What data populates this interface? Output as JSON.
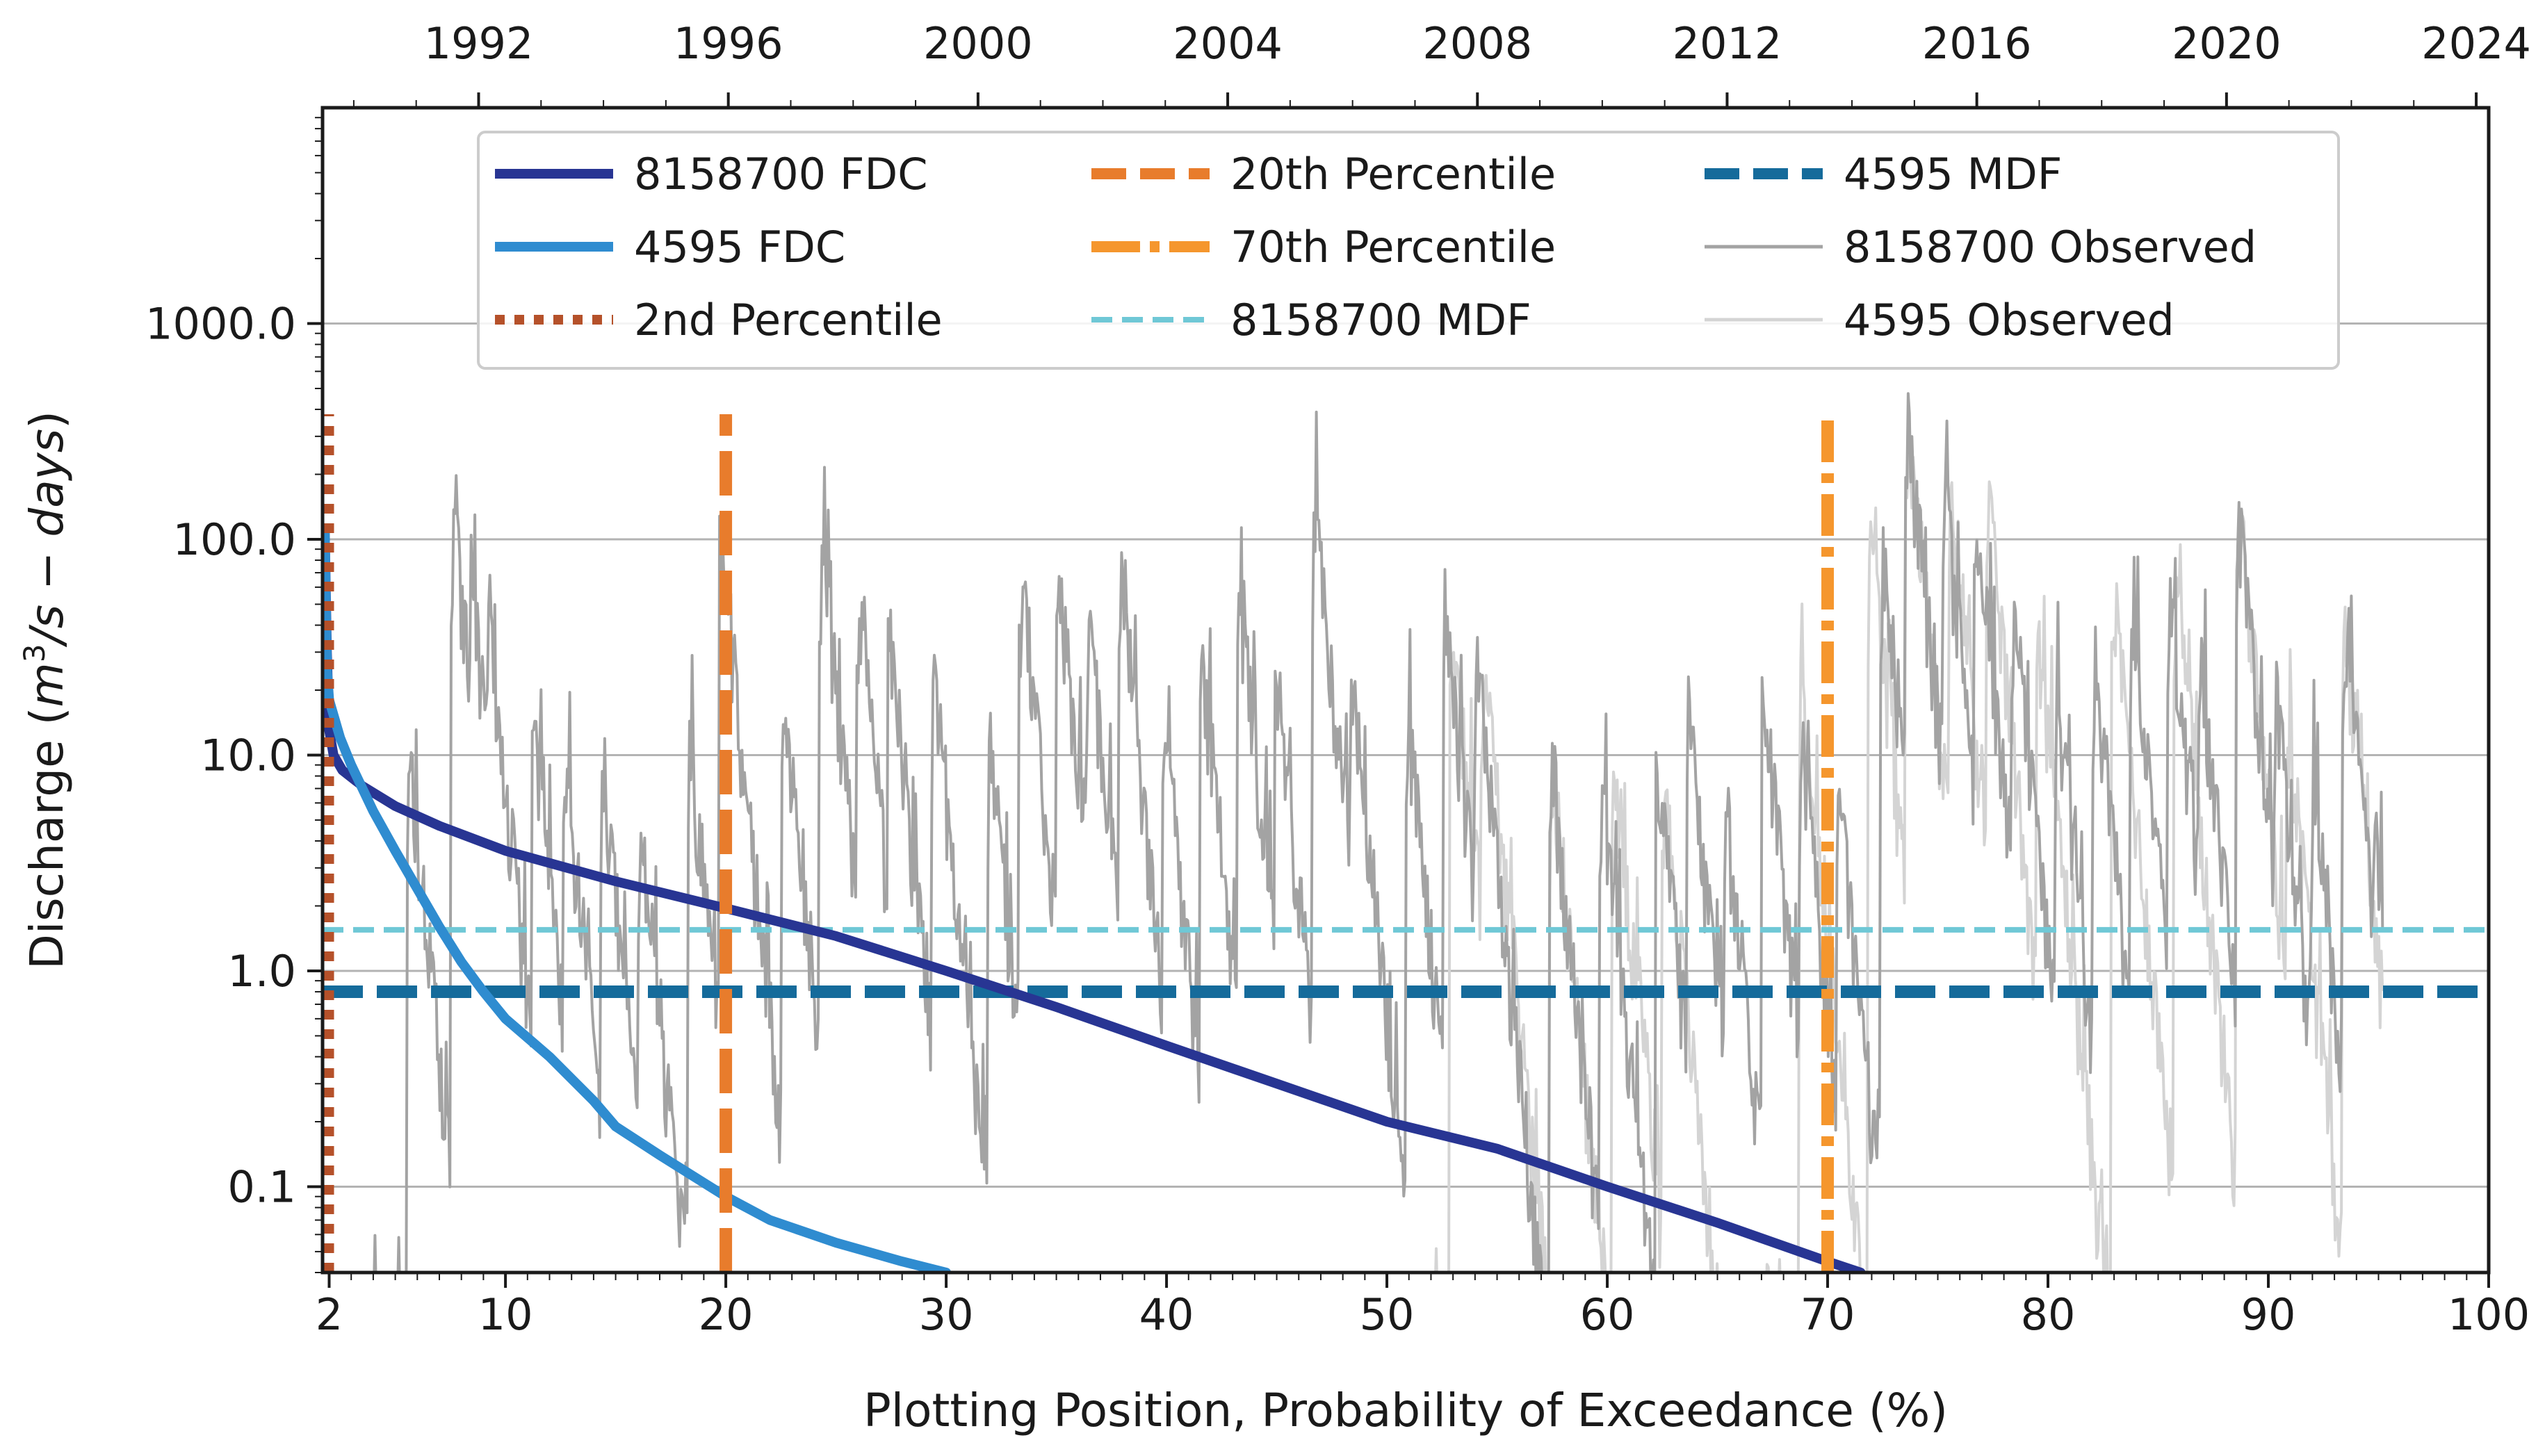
{
  "chart_data": {
    "type": "line",
    "title": "",
    "xlabel": "Plotting Position, Probability of Exceedance (%)",
    "ylabel_main": "Discharge (",
    "ylabel_m": "m",
    "ylabel_sup": "3",
    "ylabel_rest": "/s − days",
    "ylabel_close": ")",
    "xlim": [
      1.7,
      100
    ],
    "ylim": [
      0.04,
      10000
    ],
    "yscale": "log",
    "x_ticks": [
      2,
      10,
      20,
      30,
      40,
      50,
      60,
      70,
      80,
      90,
      100
    ],
    "x_tick_labels": [
      "2",
      "10",
      "20",
      "30",
      "40",
      "50",
      "60",
      "70",
      "80",
      "90",
      "100"
    ],
    "y_ticks": [
      0.1,
      1,
      10,
      100,
      1000
    ],
    "y_tick_labels": [
      "0.1",
      "1.0",
      "10.0",
      "100.0",
      "1000.0"
    ],
    "top_axis": {
      "label_years": [
        1992,
        1996,
        2000,
        2004,
        2008,
        2012,
        2016,
        2020,
        2024
      ],
      "tick_labels": [
        "1992",
        "1996",
        "2000",
        "2004",
        "2008",
        "2012",
        "2016",
        "2020",
        "2024"
      ],
      "year_range": [
        1989.5,
        2024.2
      ]
    },
    "grid": "horizontal",
    "legend_position": "upper-center",
    "colors": {
      "fdc_8158700": "#283593",
      "fdc_4595": "#2f8cd0",
      "p2": "#b5512a",
      "p20": "#e87c2c",
      "p70": "#f5962d",
      "mdf_8158700": "#6fc8d6",
      "mdf_4595": "#156b9b",
      "obs_8158700": "#a3a3a3",
      "obs_4595": "#d4d4d4"
    },
    "legend": [
      {
        "label": "8158700 FDC",
        "style": "solid-thick",
        "color": "#283593"
      },
      {
        "label": "4595 FDC",
        "style": "solid-thick",
        "color": "#2f8cd0"
      },
      {
        "label": "2nd Percentile",
        "style": "dotted",
        "color": "#b5512a"
      },
      {
        "label": "20th Percentile",
        "style": "dashed",
        "color": "#e87c2c"
      },
      {
        "label": "70th Percentile",
        "style": "dashdot",
        "color": "#f5962d"
      },
      {
        "label": "8158700 MDF",
        "style": "dashed-thin",
        "color": "#6fc8d6"
      },
      {
        "label": "4595 MDF",
        "style": "dashed-thick",
        "color": "#156b9b"
      },
      {
        "label": "8158700 Observed",
        "style": "solid-thin",
        "color": "#a3a3a3"
      },
      {
        "label": "4595 Observed",
        "style": "solid-thin",
        "color": "#d4d4d4"
      }
    ],
    "series": [
      {
        "name": "8158700 FDC",
        "x": [
          1.8,
          1.9,
          2.0,
          2.2,
          2.6,
          3.5,
          5.0,
          7.0,
          10.0,
          15.0,
          20.0,
          25.0,
          30.0,
          35.0,
          40.0,
          45.0,
          50.0,
          55.0,
          60.0,
          65.0,
          70.0,
          71.5
        ],
        "y": [
          110,
          30,
          13,
          10,
          8.5,
          7.2,
          5.8,
          4.7,
          3.6,
          2.6,
          1.95,
          1.45,
          1.0,
          0.68,
          0.45,
          0.3,
          0.2,
          0.15,
          0.1,
          0.068,
          0.045,
          0.04
        ]
      },
      {
        "name": "4595 FDC",
        "x": [
          1.8,
          1.9,
          2.0,
          2.5,
          3.0,
          4.0,
          5.0,
          6.0,
          7.0,
          8.0,
          9.0,
          10.0,
          12.0,
          14.0,
          15.0,
          17.0,
          20.0,
          22.0,
          25.0,
          28.0,
          30.0
        ],
        "y": [
          110,
          25,
          18,
          12,
          9,
          5.5,
          3.6,
          2.4,
          1.6,
          1.1,
          0.8,
          0.6,
          0.4,
          0.25,
          0.19,
          0.14,
          0.09,
          0.07,
          0.055,
          0.045,
          0.04
        ]
      }
    ],
    "reference_lines": {
      "vertical": [
        {
          "name": "2nd Percentile",
          "x": 2.0,
          "ymax": 380
        },
        {
          "name": "20th Percentile",
          "x": 20.0,
          "ymax": 380
        },
        {
          "name": "70th Percentile",
          "x": 70.0,
          "ymax": 380
        }
      ],
      "horizontal": [
        {
          "name": "8158700 MDF",
          "y": 1.55
        },
        {
          "name": "4595 MDF",
          "y": 0.8
        }
      ]
    },
    "observed_8158700": {
      "year_span": [
        1990.3,
        2022.5
      ],
      "peaks": [
        {
          "year": 1990.9,
          "value": 10
        },
        {
          "year": 1991.6,
          "value": 150
        },
        {
          "year": 1991.9,
          "value": 70
        },
        {
          "year": 1992.2,
          "value": 40
        },
        {
          "year": 1992.9,
          "value": 15
        },
        {
          "year": 1993.4,
          "value": 10
        },
        {
          "year": 1994.0,
          "value": 9
        },
        {
          "year": 1994.6,
          "value": 5
        },
        {
          "year": 1995.4,
          "value": 12
        },
        {
          "year": 1995.9,
          "value": 100
        },
        {
          "year": 1996.9,
          "value": 18
        },
        {
          "year": 1997.5,
          "value": 100
        },
        {
          "year": 1998.1,
          "value": 55
        },
        {
          "year": 1998.6,
          "value": 40
        },
        {
          "year": 1999.3,
          "value": 25
        },
        {
          "year": 2000.2,
          "value": 12
        },
        {
          "year": 2000.7,
          "value": 70
        },
        {
          "year": 2001.3,
          "value": 80
        },
        {
          "year": 2001.8,
          "value": 40
        },
        {
          "year": 2002.3,
          "value": 70
        },
        {
          "year": 2003.0,
          "value": 15
        },
        {
          "year": 2003.6,
          "value": 30
        },
        {
          "year": 2004.2,
          "value": 60
        },
        {
          "year": 2004.8,
          "value": 25
        },
        {
          "year": 2005.4,
          "value": 150
        },
        {
          "year": 2006.0,
          "value": 25
        },
        {
          "year": 2006.9,
          "value": 15
        },
        {
          "year": 2007.5,
          "value": 50
        },
        {
          "year": 2008.0,
          "value": 30
        },
        {
          "year": 2009.2,
          "value": 10
        },
        {
          "year": 2010.0,
          "value": 8
        },
        {
          "year": 2010.9,
          "value": 10
        },
        {
          "year": 2011.4,
          "value": 15
        },
        {
          "year": 2012.0,
          "value": 6
        },
        {
          "year": 2012.6,
          "value": 20
        },
        {
          "year": 2013.2,
          "value": 12
        },
        {
          "year": 2013.8,
          "value": 7
        },
        {
          "year": 2014.5,
          "value": 100
        },
        {
          "year": 2014.9,
          "value": 380
        },
        {
          "year": 2015.5,
          "value": 170
        },
        {
          "year": 2016.0,
          "value": 140
        },
        {
          "year": 2016.6,
          "value": 50
        },
        {
          "year": 2017.3,
          "value": 20
        },
        {
          "year": 2017.9,
          "value": 30
        },
        {
          "year": 2018.5,
          "value": 50
        },
        {
          "year": 2019.1,
          "value": 60
        },
        {
          "year": 2019.6,
          "value": 30
        },
        {
          "year": 2020.2,
          "value": 140
        },
        {
          "year": 2020.8,
          "value": 20
        },
        {
          "year": 2021.4,
          "value": 8
        },
        {
          "year": 2021.9,
          "value": 40
        },
        {
          "year": 2022.4,
          "value": 5
        }
      ]
    },
    "observed_4595": {
      "year_span": [
        2007.1,
        2022.5
      ],
      "peaks": [
        {
          "year": 2007.6,
          "value": 45
        },
        {
          "year": 2008.1,
          "value": 30
        },
        {
          "year": 2009.2,
          "value": 10
        },
        {
          "year": 2010.2,
          "value": 10
        },
        {
          "year": 2011.0,
          "value": 8
        },
        {
          "year": 2013.2,
          "value": 20
        },
        {
          "year": 2014.3,
          "value": 110
        },
        {
          "year": 2014.9,
          "value": 380
        },
        {
          "year": 2015.6,
          "value": 180
        },
        {
          "year": 2016.2,
          "value": 150
        },
        {
          "year": 2017.0,
          "value": 40
        },
        {
          "year": 2018.2,
          "value": 60
        },
        {
          "year": 2019.2,
          "value": 65
        },
        {
          "year": 2020.2,
          "value": 150
        },
        {
          "year": 2021.0,
          "value": 15
        },
        {
          "year": 2021.9,
          "value": 45
        }
      ]
    }
  }
}
